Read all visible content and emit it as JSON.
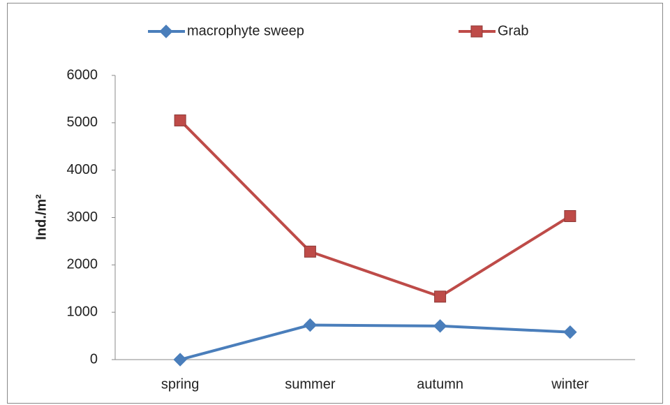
{
  "chart_data": {
    "type": "line",
    "y_label": "Ind./m²",
    "categories": [
      "spring",
      "summer",
      "autumn",
      "winter"
    ],
    "series": [
      {
        "name": "macrophyte sweep",
        "color": "#4a7ebb",
        "marker": "diamond",
        "values": [
          0,
          730,
          710,
          580
        ]
      },
      {
        "name": "Grab",
        "color": "#be4b48",
        "marker": "square",
        "values": [
          5050,
          2280,
          1330,
          3030
        ]
      }
    ],
    "ylim": [
      0,
      6000
    ],
    "yticks": [
      0,
      1000,
      2000,
      3000,
      4000,
      5000,
      6000
    ],
    "legend": "top",
    "grid": false
  }
}
